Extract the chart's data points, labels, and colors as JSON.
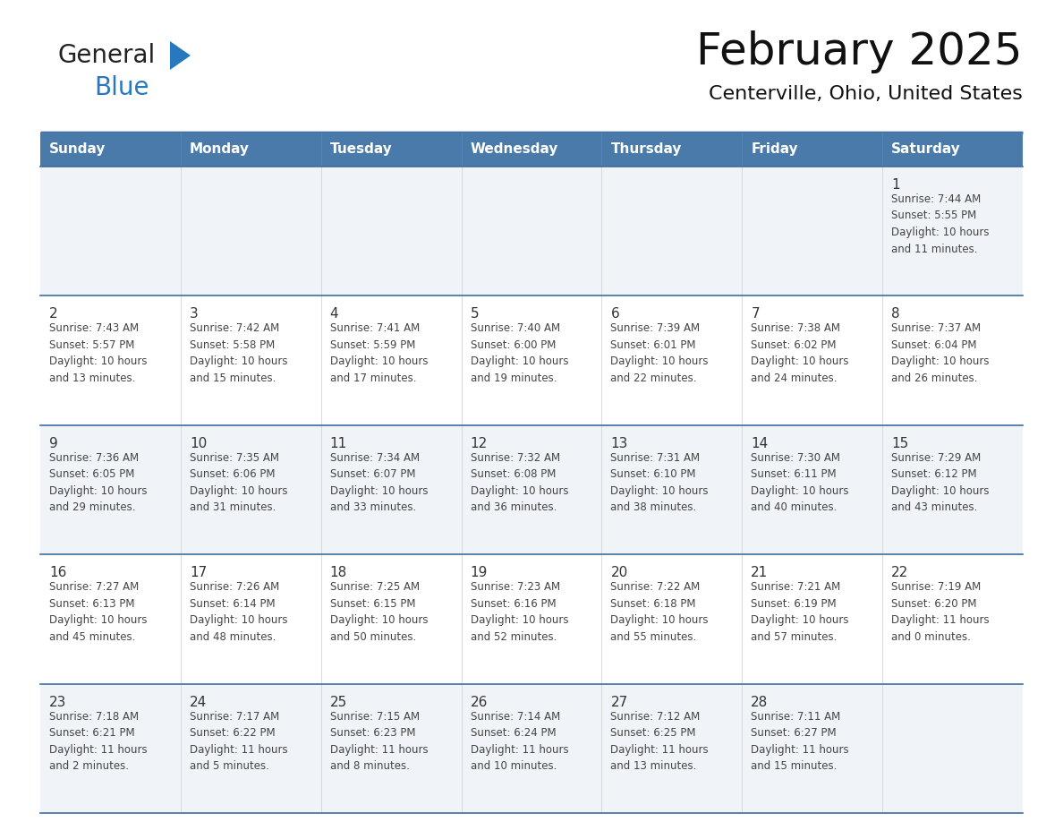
{
  "title": "February 2025",
  "subtitle": "Centerville, Ohio, United States",
  "header_bg_color": "#4a7aaa",
  "header_text_color": "#ffffff",
  "cell_bg_color_light": "#f0f4f8",
  "cell_bg_color_white": "#ffffff",
  "day_number_color": "#333333",
  "cell_text_color": "#444444",
  "border_color": "#3d6e9e",
  "days_of_week": [
    "Sunday",
    "Monday",
    "Tuesday",
    "Wednesday",
    "Thursday",
    "Friday",
    "Saturday"
  ],
  "weeks": [
    [
      {
        "day": "",
        "info": ""
      },
      {
        "day": "",
        "info": ""
      },
      {
        "day": "",
        "info": ""
      },
      {
        "day": "",
        "info": ""
      },
      {
        "day": "",
        "info": ""
      },
      {
        "day": "",
        "info": ""
      },
      {
        "day": "1",
        "info": "Sunrise: 7:44 AM\nSunset: 5:55 PM\nDaylight: 10 hours\nand 11 minutes."
      }
    ],
    [
      {
        "day": "2",
        "info": "Sunrise: 7:43 AM\nSunset: 5:57 PM\nDaylight: 10 hours\nand 13 minutes."
      },
      {
        "day": "3",
        "info": "Sunrise: 7:42 AM\nSunset: 5:58 PM\nDaylight: 10 hours\nand 15 minutes."
      },
      {
        "day": "4",
        "info": "Sunrise: 7:41 AM\nSunset: 5:59 PM\nDaylight: 10 hours\nand 17 minutes."
      },
      {
        "day": "5",
        "info": "Sunrise: 7:40 AM\nSunset: 6:00 PM\nDaylight: 10 hours\nand 19 minutes."
      },
      {
        "day": "6",
        "info": "Sunrise: 7:39 AM\nSunset: 6:01 PM\nDaylight: 10 hours\nand 22 minutes."
      },
      {
        "day": "7",
        "info": "Sunrise: 7:38 AM\nSunset: 6:02 PM\nDaylight: 10 hours\nand 24 minutes."
      },
      {
        "day": "8",
        "info": "Sunrise: 7:37 AM\nSunset: 6:04 PM\nDaylight: 10 hours\nand 26 minutes."
      }
    ],
    [
      {
        "day": "9",
        "info": "Sunrise: 7:36 AM\nSunset: 6:05 PM\nDaylight: 10 hours\nand 29 minutes."
      },
      {
        "day": "10",
        "info": "Sunrise: 7:35 AM\nSunset: 6:06 PM\nDaylight: 10 hours\nand 31 minutes."
      },
      {
        "day": "11",
        "info": "Sunrise: 7:34 AM\nSunset: 6:07 PM\nDaylight: 10 hours\nand 33 minutes."
      },
      {
        "day": "12",
        "info": "Sunrise: 7:32 AM\nSunset: 6:08 PM\nDaylight: 10 hours\nand 36 minutes."
      },
      {
        "day": "13",
        "info": "Sunrise: 7:31 AM\nSunset: 6:10 PM\nDaylight: 10 hours\nand 38 minutes."
      },
      {
        "day": "14",
        "info": "Sunrise: 7:30 AM\nSunset: 6:11 PM\nDaylight: 10 hours\nand 40 minutes."
      },
      {
        "day": "15",
        "info": "Sunrise: 7:29 AM\nSunset: 6:12 PM\nDaylight: 10 hours\nand 43 minutes."
      }
    ],
    [
      {
        "day": "16",
        "info": "Sunrise: 7:27 AM\nSunset: 6:13 PM\nDaylight: 10 hours\nand 45 minutes."
      },
      {
        "day": "17",
        "info": "Sunrise: 7:26 AM\nSunset: 6:14 PM\nDaylight: 10 hours\nand 48 minutes."
      },
      {
        "day": "18",
        "info": "Sunrise: 7:25 AM\nSunset: 6:15 PM\nDaylight: 10 hours\nand 50 minutes."
      },
      {
        "day": "19",
        "info": "Sunrise: 7:23 AM\nSunset: 6:16 PM\nDaylight: 10 hours\nand 52 minutes."
      },
      {
        "day": "20",
        "info": "Sunrise: 7:22 AM\nSunset: 6:18 PM\nDaylight: 10 hours\nand 55 minutes."
      },
      {
        "day": "21",
        "info": "Sunrise: 7:21 AM\nSunset: 6:19 PM\nDaylight: 10 hours\nand 57 minutes."
      },
      {
        "day": "22",
        "info": "Sunrise: 7:19 AM\nSunset: 6:20 PM\nDaylight: 11 hours\nand 0 minutes."
      }
    ],
    [
      {
        "day": "23",
        "info": "Sunrise: 7:18 AM\nSunset: 6:21 PM\nDaylight: 11 hours\nand 2 minutes."
      },
      {
        "day": "24",
        "info": "Sunrise: 7:17 AM\nSunset: 6:22 PM\nDaylight: 11 hours\nand 5 minutes."
      },
      {
        "day": "25",
        "info": "Sunrise: 7:15 AM\nSunset: 6:23 PM\nDaylight: 11 hours\nand 8 minutes."
      },
      {
        "day": "26",
        "info": "Sunrise: 7:14 AM\nSunset: 6:24 PM\nDaylight: 11 hours\nand 10 minutes."
      },
      {
        "day": "27",
        "info": "Sunrise: 7:12 AM\nSunset: 6:25 PM\nDaylight: 11 hours\nand 13 minutes."
      },
      {
        "day": "28",
        "info": "Sunrise: 7:11 AM\nSunset: 6:27 PM\nDaylight: 11 hours\nand 15 minutes."
      },
      {
        "day": "",
        "info": ""
      }
    ]
  ],
  "logo_text_general": "General",
  "logo_text_blue": "Blue",
  "logo_general_color": "#222222",
  "logo_blue_color": "#2878be",
  "logo_triangle_color": "#2878be",
  "fig_width": 11.88,
  "fig_height": 9.18,
  "dpi": 100
}
